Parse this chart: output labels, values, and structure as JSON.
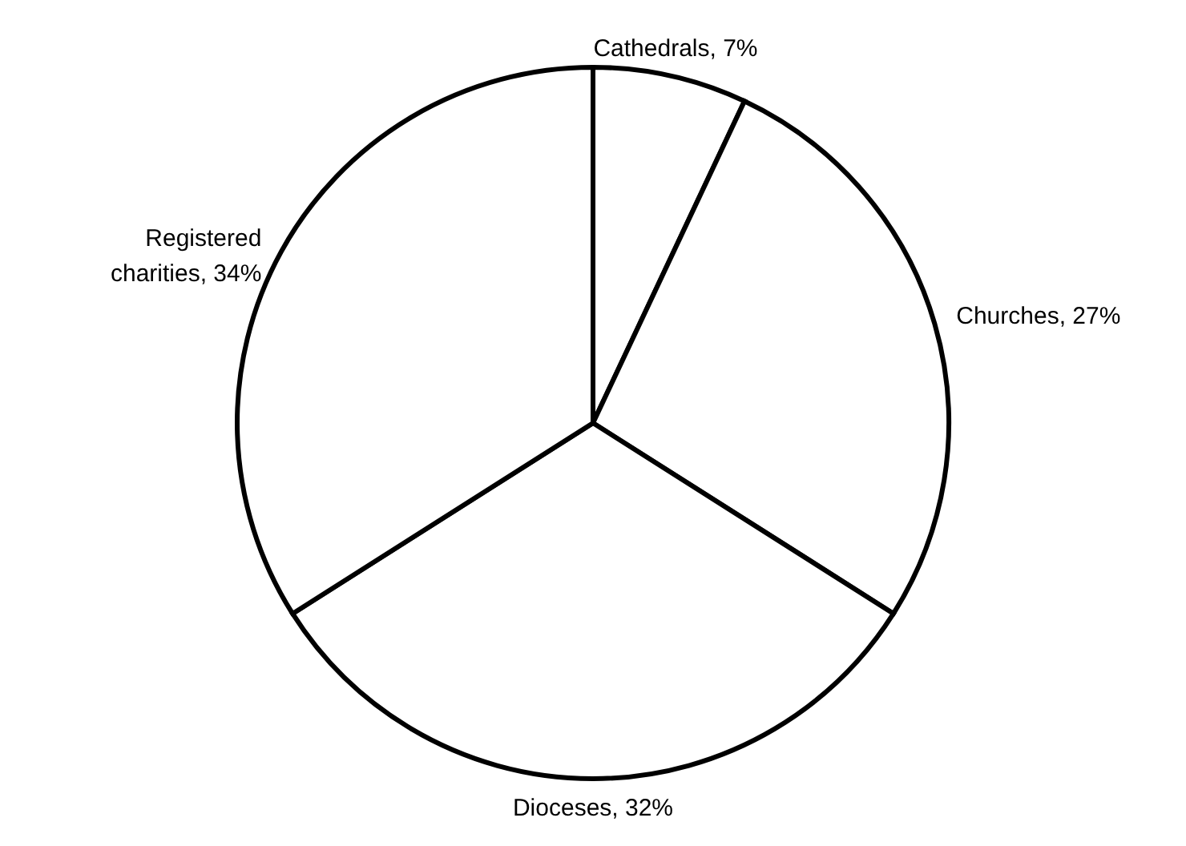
{
  "chart_data": {
    "type": "pie",
    "categories": [
      "Cathedrals",
      "Churches",
      "Dioceses",
      "Registered charities"
    ],
    "values": [
      7,
      27,
      32,
      34
    ],
    "value_labels": [
      "7%",
      "27%",
      "32%",
      "34%"
    ],
    "colors": [
      "#ffffff",
      "#ffffff",
      "#ffffff",
      "#ffffff"
    ],
    "legend": false
  }
}
